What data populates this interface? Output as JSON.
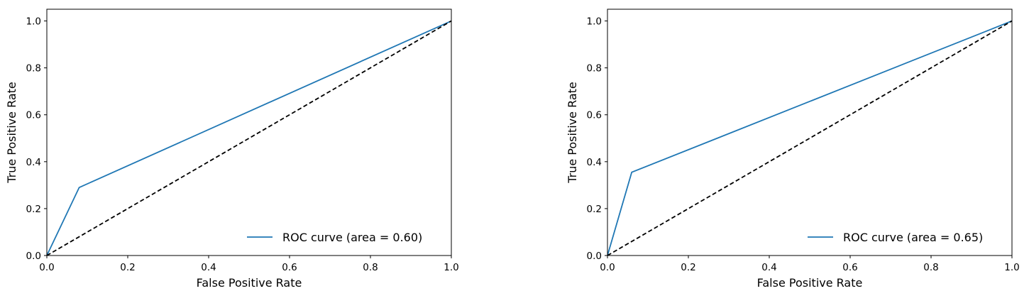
{
  "chart_data": [
    {
      "type": "line",
      "title": "",
      "xlabel": "False Positive Rate",
      "ylabel": "True Positive Rate",
      "xlim": [
        0.0,
        1.0
      ],
      "ylim": [
        0.0,
        1.05
      ],
      "xticks": [
        "0.0",
        "0.2",
        "0.4",
        "0.6",
        "0.8",
        "1.0"
      ],
      "yticks": [
        "0.0",
        "0.2",
        "0.4",
        "0.6",
        "0.8",
        "1.0"
      ],
      "grid": false,
      "legend_position": "lower-right",
      "series": [
        {
          "name": "ROC curve (area = 0.60)",
          "x": [
            0.0,
            0.08,
            1.0
          ],
          "y": [
            0.0,
            0.29,
            1.0
          ],
          "color": "#1f77b4",
          "style": "solid"
        },
        {
          "x": [
            0.0,
            1.0
          ],
          "y": [
            0.0,
            1.0
          ],
          "color": "#000000",
          "style": "dashed"
        }
      ]
    },
    {
      "type": "line",
      "title": "",
      "xlabel": "False Positive Rate",
      "ylabel": "True Positive Rate",
      "xlim": [
        0.0,
        1.0
      ],
      "ylim": [
        0.0,
        1.05
      ],
      "xticks": [
        "0.0",
        "0.2",
        "0.4",
        "0.6",
        "0.8",
        "1.0"
      ],
      "yticks": [
        "0.0",
        "0.2",
        "0.4",
        "0.6",
        "0.8",
        "1.0"
      ],
      "grid": false,
      "legend_position": "lower-right",
      "series": [
        {
          "name": "ROC curve (area = 0.65)",
          "x": [
            0.0,
            0.06,
            1.0
          ],
          "y": [
            0.0,
            0.355,
            1.0
          ],
          "color": "#1f77b4",
          "style": "solid"
        },
        {
          "x": [
            0.0,
            1.0
          ],
          "y": [
            0.0,
            1.0
          ],
          "color": "#000000",
          "style": "dashed"
        }
      ]
    }
  ]
}
